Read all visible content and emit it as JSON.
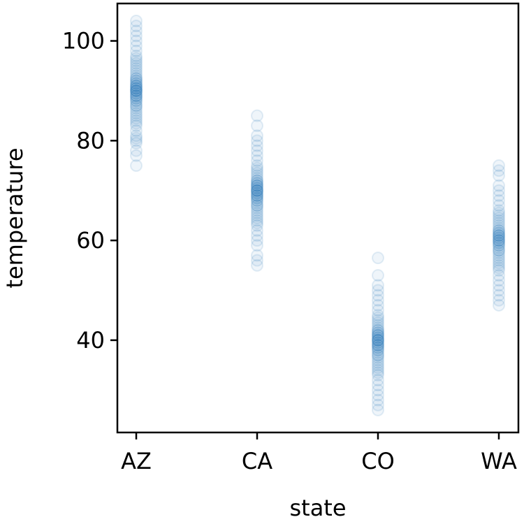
{
  "chart_data": {
    "type": "scatter",
    "title": "",
    "xlabel": "state",
    "ylabel": "temperature",
    "categories": [
      "AZ",
      "CA",
      "CO",
      "WA"
    ],
    "ylim": [
      21.5,
      107.5
    ],
    "yticks": [
      40,
      60,
      80,
      100
    ],
    "grid": false,
    "marker_color": "#1f77b4",
    "series": [
      {
        "category": "AZ",
        "values": [
          75,
          77,
          78,
          79.5,
          80,
          80.5,
          81,
          82,
          83,
          83.5,
          84,
          84.5,
          85,
          85.5,
          86,
          86.5,
          87,
          87,
          87.5,
          88,
          88,
          88.5,
          88.5,
          89,
          89,
          89,
          89.5,
          89.5,
          90,
          90,
          90,
          90,
          90.5,
          90.5,
          90.5,
          91,
          91,
          91,
          91.5,
          91.5,
          92,
          92,
          92.5,
          92.5,
          93,
          93.5,
          94,
          94.5,
          95,
          95.5,
          96,
          96.5,
          97,
          98,
          99,
          100,
          101,
          102,
          103,
          104
        ]
      },
      {
        "category": "CA",
        "values": [
          55,
          56,
          57,
          59,
          60,
          61,
          62,
          63,
          63.5,
          64,
          64.5,
          65,
          65.5,
          66,
          66.5,
          67,
          67,
          67.5,
          68,
          68,
          68.5,
          68.5,
          69,
          69,
          69,
          69.5,
          69.5,
          70,
          70,
          70,
          70,
          70.5,
          70.5,
          71,
          71,
          71,
          71.5,
          71.5,
          72,
          72,
          72.5,
          73,
          73.5,
          74,
          74.5,
          75,
          76,
          77,
          78,
          79,
          80,
          81,
          83,
          85
        ]
      },
      {
        "category": "CO",
        "values": [
          26,
          27,
          28,
          29,
          30,
          31,
          32,
          33,
          33.5,
          34,
          34.5,
          35,
          35.5,
          36,
          36.5,
          37,
          37,
          37.5,
          38,
          38,
          38.5,
          38.5,
          39,
          39,
          39,
          39.5,
          39.5,
          40,
          40,
          40,
          40,
          40.5,
          40.5,
          41,
          41,
          41,
          41.5,
          41.5,
          42,
          42,
          42.5,
          43,
          43.5,
          44,
          44.5,
          45,
          46,
          47,
          48,
          49,
          50,
          51,
          53,
          56.5
        ]
      },
      {
        "category": "WA",
        "values": [
          47,
          48,
          49,
          50,
          51,
          52,
          53,
          54,
          54.5,
          55,
          55.5,
          56,
          56.5,
          57,
          57.5,
          58,
          58,
          58.5,
          59,
          59,
          59.5,
          59.5,
          60,
          60,
          60,
          60.5,
          60.5,
          61,
          61,
          61,
          61.5,
          61.5,
          62,
          62,
          62.5,
          63,
          63.5,
          64,
          64.5,
          65,
          65.5,
          66,
          67,
          68,
          69,
          70,
          71,
          73,
          74,
          75
        ]
      }
    ]
  }
}
